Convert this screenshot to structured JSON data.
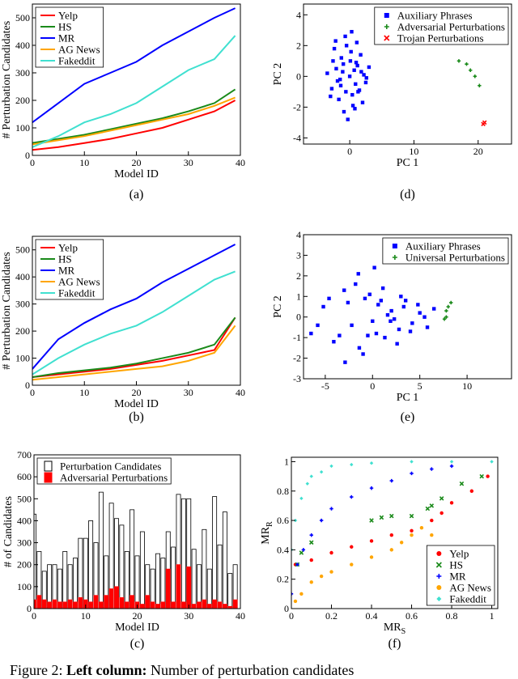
{
  "chart_data": [
    {
      "type": "line",
      "label": "(a)",
      "xlabel": "Model ID",
      "ylabel": "# Perturbation Candidates",
      "x": [
        0,
        5,
        10,
        15,
        20,
        25,
        30,
        35,
        39
      ],
      "xlim": [
        0,
        40
      ],
      "xticks": [
        0,
        10,
        20,
        30,
        40
      ],
      "ylim": [
        0,
        550
      ],
      "yticks": [
        0,
        100,
        200,
        300,
        400,
        500
      ],
      "legend": "upper left",
      "series": [
        {
          "name": "Yelp",
          "color": "#ff0000",
          "values": [
            20,
            30,
            45,
            60,
            80,
            100,
            130,
            160,
            200
          ]
        },
        {
          "name": "HS",
          "color": "#1a8a1a",
          "values": [
            45,
            60,
            75,
            95,
            115,
            135,
            160,
            190,
            240
          ]
        },
        {
          "name": "MR",
          "color": "#0000ff",
          "values": [
            120,
            190,
            260,
            300,
            340,
            400,
            450,
            500,
            535
          ]
        },
        {
          "name": "AG News",
          "color": "#ffa500",
          "values": [
            40,
            55,
            70,
            90,
            110,
            130,
            150,
            180,
            210
          ]
        },
        {
          "name": "Fakeddit",
          "color": "#40e0d0",
          "values": [
            30,
            70,
            120,
            150,
            190,
            250,
            310,
            350,
            435
          ]
        }
      ]
    },
    {
      "type": "line",
      "label": "(b)",
      "xlabel": "Model ID",
      "ylabel": "# Perturbation Candidates",
      "x": [
        0,
        5,
        10,
        15,
        20,
        25,
        30,
        35,
        39
      ],
      "xlim": [
        0,
        40
      ],
      "xticks": [
        0,
        10,
        20,
        30,
        40
      ],
      "ylim": [
        0,
        550
      ],
      "yticks": [
        0,
        100,
        200,
        300,
        400,
        500
      ],
      "legend": "upper left",
      "series": [
        {
          "name": "Yelp",
          "color": "#ff0000",
          "values": [
            30,
            40,
            50,
            60,
            75,
            90,
            110,
            130,
            250
          ]
        },
        {
          "name": "HS",
          "color": "#1a8a1a",
          "values": [
            30,
            45,
            55,
            65,
            80,
            100,
            120,
            150,
            250
          ]
        },
        {
          "name": "MR",
          "color": "#0000ff",
          "values": [
            60,
            170,
            230,
            280,
            320,
            380,
            430,
            480,
            520
          ]
        },
        {
          "name": "AG News",
          "color": "#ffa500",
          "values": [
            20,
            30,
            40,
            50,
            60,
            70,
            90,
            120,
            220
          ]
        },
        {
          "name": "Fakeddit",
          "color": "#40e0d0",
          "values": [
            40,
            100,
            150,
            190,
            220,
            270,
            330,
            390,
            420
          ]
        }
      ]
    },
    {
      "type": "bar",
      "label": "(c)",
      "xlabel": "Model ID",
      "ylabel": "# of Candidates",
      "x": [
        0,
        1,
        2,
        3,
        4,
        5,
        6,
        7,
        8,
        9,
        10,
        11,
        12,
        13,
        14,
        15,
        16,
        17,
        18,
        19,
        20,
        21,
        22,
        23,
        24,
        25,
        26,
        27,
        28,
        29,
        30,
        31,
        32,
        33,
        34,
        35,
        36,
        37,
        38,
        39
      ],
      "xlim": [
        0,
        40
      ],
      "xticks": [
        0,
        10,
        20,
        30,
        40
      ],
      "ylim": [
        0,
        700
      ],
      "yticks": [
        0,
        100,
        200,
        300,
        400,
        500,
        600,
        700
      ],
      "legend": "upper left",
      "series": [
        {
          "name": "Perturbation Candidates",
          "color": "#ffffff",
          "edgecolor": "#000000",
          "values": [
            430,
            260,
            170,
            200,
            200,
            180,
            260,
            200,
            230,
            320,
            320,
            400,
            300,
            530,
            240,
            480,
            410,
            380,
            260,
            450,
            240,
            350,
            200,
            180,
            250,
            230,
            350,
            280,
            520,
            500,
            500,
            270,
            200,
            360,
            180,
            510,
            290,
            440,
            160,
            200
          ]
        },
        {
          "name": "Adversarial Perturbations",
          "color": "#ff0000",
          "edgecolor": "#ff0000",
          "values": [
            40,
            60,
            40,
            30,
            40,
            30,
            30,
            40,
            30,
            50,
            40,
            30,
            60,
            30,
            60,
            90,
            100,
            50,
            30,
            60,
            30,
            20,
            60,
            30,
            20,
            30,
            180,
            30,
            200,
            30,
            190,
            20,
            30,
            40,
            20,
            40,
            30,
            20,
            10,
            40
          ]
        }
      ]
    },
    {
      "type": "scatter",
      "label": "(d)",
      "xlabel": "PC 1",
      "ylabel": "PC 2",
      "xlim": [
        -7.2,
        25.2
      ],
      "xticks": [
        0,
        10,
        20
      ],
      "ylim": [
        -4.4,
        4.7
      ],
      "yticks": [
        -4,
        -2,
        0,
        2,
        4
      ],
      "legend": "upper right",
      "series": [
        {
          "name": "Auxiliary Phrases",
          "color": "#0000ff",
          "marker": "square",
          "x": [
            -2.1,
            -1.3,
            -0.5,
            0.2,
            1.0,
            1.8,
            2.5,
            -2.8,
            -1.7,
            -0.9,
            0.5,
            1.3,
            2.2,
            -3.5,
            -2.4,
            -1.0,
            0.0,
            0.9,
            1.7,
            3.0,
            -1.9,
            -0.7,
            0.4,
            1.1,
            2.0,
            -2.6,
            -1.4,
            -0.3,
            0.7,
            1.5,
            -3.0,
            -1.1,
            0.1,
            0.8,
            2.6,
            -2.2,
            -0.6,
            0.3,
            1.2,
            -1.5
          ],
          "y": [
            0.5,
            1.2,
            2.0,
            1.6,
            0.9,
            0.3,
            -0.4,
            -0.8,
            -1.5,
            -2.3,
            -1.9,
            -1.0,
            0.1,
            0.2,
            1.8,
            0.8,
            0.0,
            -0.5,
            1.4,
            0.6,
            -0.3,
            2.6,
            -1.2,
            2.2,
            -1.7,
            1.0,
            -0.6,
            -2.8,
            0.4,
            -0.9,
            -1.3,
            0.3,
            1.0,
            -2.1,
            -0.1,
            2.3,
            -1.0,
            2.9,
            0.7,
            -0.2
          ]
        },
        {
          "name": "Adversarial Perturbations",
          "color": "#1a8a1a",
          "marker": "plus",
          "x": [
            17,
            18.2,
            18.8,
            19.5,
            20.2
          ],
          "y": [
            1,
            0.8,
            0.4,
            0,
            -0.6
          ]
        },
        {
          "name": "Trojan Perturbations",
          "color": "#ff0000",
          "marker": "cross",
          "x": [
            20.8,
            21
          ],
          "y": [
            -3.1,
            -3
          ]
        }
      ]
    },
    {
      "type": "scatter",
      "label": "(e)",
      "xlabel": "PC 1",
      "ylabel": "PC 2",
      "xlim": [
        -7.3,
        14.7
      ],
      "xticks": [
        -5,
        0,
        5,
        10
      ],
      "ylim": [
        -3,
        4
      ],
      "yticks": [
        -3,
        -2,
        -1,
        0,
        1,
        2,
        3,
        4
      ],
      "legend": "upper right",
      "series": [
        {
          "name": "Auxiliary Phrases",
          "color": "#0000ff",
          "marker": "square",
          "x": [
            -6.5,
            -5.2,
            -4.1,
            -3.0,
            -2.2,
            -1.5,
            -0.8,
            0.0,
            0.6,
            1.3,
            2.0,
            2.8,
            3.5,
            4.2,
            5.0,
            5.8,
            6.5,
            -4.6,
            -3.5,
            -2.6,
            -1.8,
            -1.0,
            -0.3,
            0.4,
            1.1,
            1.9,
            2.6,
            3.3,
            4.0,
            4.8,
            -2.9,
            -1.4,
            0.2,
            1.6,
            3.0,
            -5.8,
            -0.5,
            0.9,
            2.3,
            5.5
          ],
          "y": [
            -0.8,
            0.5,
            -1.2,
            1.3,
            -0.4,
            2.1,
            0.9,
            -0.2,
            0.6,
            -1.0,
            0.3,
            -0.6,
            0.8,
            -0.3,
            0.2,
            -0.5,
            0.4,
            0.9,
            -0.9,
            0.7,
            1.6,
            -1.8,
            1.1,
            -0.8,
            1.4,
            -0.2,
            -1.3,
            0.5,
            -0.7,
            0.6,
            -2.2,
            -1.5,
            2.4,
            0.1,
            1.0,
            -0.4,
            -0.9,
            0.8,
            -0.1,
            0.0
          ]
        },
        {
          "name": "Universal Perturbations",
          "color": "#1a8a1a",
          "marker": "plus",
          "x": [
            7.6,
            7.8,
            7.8,
            8.0,
            8.3
          ],
          "y": [
            -0.1,
            0,
            0.3,
            0.5,
            0.7
          ]
        }
      ]
    },
    {
      "type": "scatter",
      "label": "(f)",
      "xlabel": "MR",
      "xlabel_sub": "S",
      "ylabel": "MR",
      "ylabel_sub": "R",
      "xlim": [
        0,
        1.03
      ],
      "xticks": [
        0,
        0.2,
        0.4,
        0.6,
        0.8,
        1
      ],
      "ylim": [
        0,
        1.03
      ],
      "yticks": [
        0,
        0.2,
        0.4,
        0.6,
        0.8,
        1
      ],
      "legend": "lower right",
      "series": [
        {
          "name": "Yelp",
          "color": "#ff0000",
          "marker": "circle",
          "x": [
            0.02,
            0.1,
            0.2,
            0.3,
            0.4,
            0.5,
            0.6,
            0.7,
            0.75,
            0.8,
            0.9,
            0.98
          ],
          "y": [
            0.3,
            0.33,
            0.38,
            0.42,
            0.46,
            0.5,
            0.53,
            0.6,
            0.65,
            0.72,
            0.8,
            0.9
          ]
        },
        {
          "name": "HS",
          "color": "#1a8a1a",
          "marker": "cross",
          "x": [
            0.03,
            0.05,
            0.1,
            0.4,
            0.45,
            0.5,
            0.6,
            0.68,
            0.7,
            0.75,
            0.85,
            0.95
          ],
          "y": [
            0.3,
            0.38,
            0.45,
            0.6,
            0.62,
            0.63,
            0.63,
            0.68,
            0.7,
            0.75,
            0.85,
            0.9
          ]
        },
        {
          "name": "MR",
          "color": "#0000ff",
          "marker": "plus",
          "x": [
            0.0,
            0.03,
            0.06,
            0.1,
            0.15,
            0.2,
            0.3,
            0.4,
            0.5,
            0.6,
            0.7,
            0.8
          ],
          "y": [
            0.1,
            0.3,
            0.4,
            0.5,
            0.6,
            0.68,
            0.76,
            0.82,
            0.87,
            0.92,
            0.95,
            0.97
          ]
        },
        {
          "name": "AG News",
          "color": "#ffa500",
          "marker": "circle",
          "x": [
            0.02,
            0.05,
            0.1,
            0.15,
            0.2,
            0.3,
            0.4,
            0.5,
            0.55,
            0.6,
            0.65,
            0.7
          ],
          "y": [
            0.05,
            0.1,
            0.18,
            0.22,
            0.25,
            0.3,
            0.35,
            0.4,
            0.45,
            0.5,
            0.55,
            0.5
          ]
        },
        {
          "name": "Fakeddit",
          "color": "#40e0d0",
          "marker": "diamond",
          "x": [
            0.0,
            0.02,
            0.05,
            0.08,
            0.1,
            0.15,
            0.2,
            0.3,
            0.4,
            0.6,
            0.8,
            1.0
          ],
          "y": [
            0.4,
            0.6,
            0.75,
            0.85,
            0.9,
            0.93,
            0.97,
            0.98,
            0.99,
            1.0,
            1.0,
            1.0
          ]
        }
      ]
    }
  ],
  "caption": {
    "figure": "Figure 2:",
    "heading": "Left column:",
    "text": "Number of perturbation candidates"
  }
}
